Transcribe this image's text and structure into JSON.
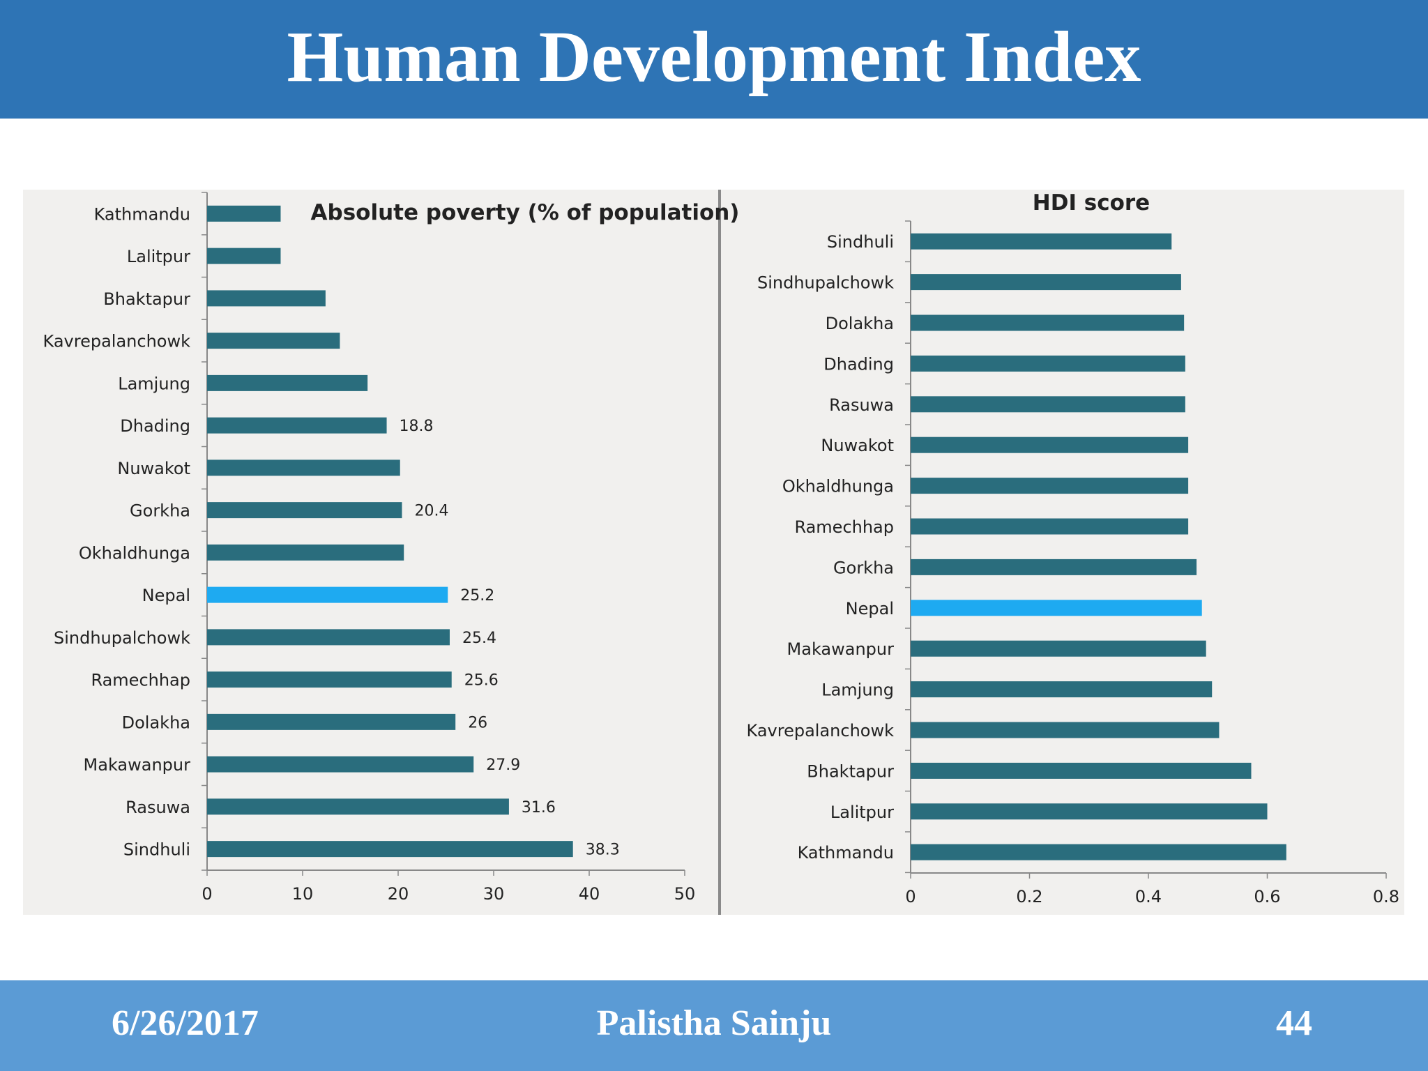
{
  "slide": {
    "title": "Human Development Index",
    "footer": {
      "date": "6/26/2017",
      "author": "Palistha Sainju",
      "page": "44"
    }
  },
  "colors": {
    "bar": "#2a6d7d",
    "highlight": "#1eaaf1",
    "title_bar": "#2e74b5",
    "footer_bar": "#5b9bd5"
  },
  "chart_data": [
    {
      "type": "bar",
      "orientation": "horizontal",
      "title": "Absolute poverty (% of population)",
      "categories": [
        "Kathmandu",
        "Lalitpur",
        "Bhaktapur",
        "Kavrepalanchowk",
        "Lamjung",
        "Dhading",
        "Nuwakot",
        "Gorkha",
        "Okhaldhunga",
        "Nepal",
        "Sindhupalchowk",
        "Ramechhap",
        "Dolakha",
        "Makawanpur",
        "Rasuwa",
        "Sindhuli"
      ],
      "values": [
        7.7,
        7.7,
        12.4,
        13.9,
        16.8,
        18.8,
        20.2,
        20.4,
        20.6,
        25.2,
        25.4,
        25.6,
        26,
        27.9,
        31.6,
        38.3
      ],
      "data_labels": [
        "",
        "",
        "",
        "",
        "",
        "18.8",
        "",
        "20.4",
        "",
        "25.2",
        "25.4",
        "25.6",
        "26",
        "27.9",
        "31.6",
        "38.3"
      ],
      "highlight": "Nepal",
      "xlim": [
        0,
        50
      ],
      "xticks": [
        "0",
        "10",
        "20",
        "30",
        "40",
        "50"
      ]
    },
    {
      "type": "bar",
      "orientation": "horizontal",
      "title": "HDI score",
      "categories": [
        "Sindhuli",
        "Sindhupalchowk",
        "Dolakha",
        "Dhading",
        "Rasuwa",
        "Nuwakot",
        "Okhaldhunga",
        "Ramechhap",
        "Gorkha",
        "Nepal",
        "Makawanpur",
        "Lamjung",
        "Kavrepalanchowk",
        "Bhaktapur",
        "Lalitpur",
        "Kathmandu"
      ],
      "values": [
        0.439,
        0.455,
        0.46,
        0.462,
        0.462,
        0.467,
        0.467,
        0.467,
        0.481,
        0.49,
        0.497,
        0.507,
        0.519,
        0.573,
        0.6,
        0.632
      ],
      "highlight": "Nepal",
      "xlim": [
        0,
        0.8
      ],
      "xticks": [
        "0",
        "0.2",
        "0.4",
        "0.6",
        "0.8"
      ]
    }
  ]
}
